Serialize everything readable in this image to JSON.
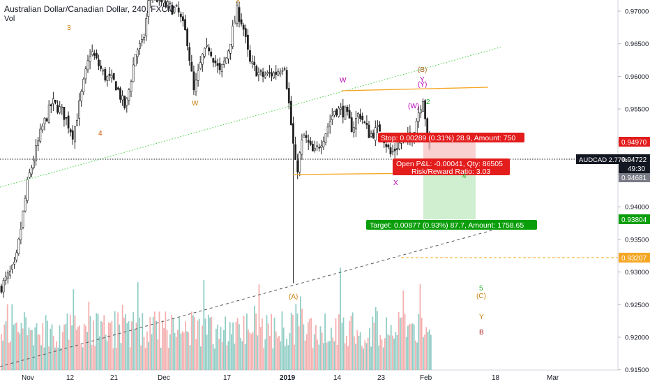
{
  "header": {
    "title": "Australian Dollar/Canadian Dollar, 240, FXCM",
    "volume_label": "Vol"
  },
  "price_axis": {
    "ticks": [
      "0.97000",
      "0.96500",
      "0.96000",
      "0.95500",
      "0.95000",
      "0.94500",
      "0.94000",
      "0.93500",
      "0.93000",
      "0.92500",
      "0.92000",
      "0.91500"
    ],
    "tick_values": [
      0.97,
      0.965,
      0.96,
      0.955,
      0.95,
      0.945,
      0.94,
      0.935,
      0.93,
      0.925,
      0.92,
      0.915
    ]
  },
  "time_axis": {
    "labels": [
      "Nov",
      "12",
      "21",
      "Dec",
      "17",
      "2019",
      "14",
      "23",
      "Feb",
      "18",
      "Mar"
    ]
  },
  "badges": {
    "stop_price": {
      "text": "0.94970",
      "value": 0.9497,
      "color": "#e31c1c"
    },
    "symbol": {
      "text": "AUDCAD  2.77%",
      "color": "#131722"
    },
    "current_price": {
      "text": "0.94722",
      "value": 0.94722,
      "color": "#131722"
    },
    "countdown": {
      "text": "49:30"
    },
    "entry_price": {
      "text": "0.94681",
      "value": 0.94681,
      "color": "#787b86"
    },
    "target_price": {
      "text": "0.93804",
      "value": 0.93804,
      "color": "#0b9e0b"
    },
    "orange_level": {
      "text": "0.93207",
      "value": 0.93207,
      "color": "#f5a623"
    }
  },
  "position": {
    "stop_label": "Stop: 0.00289 (0.31%) 28.9, Amount: 750",
    "pnl_label": "Open P&L: -0.00041, Qty: 86505",
    "rr_label": "Risk/Reward Ratio: 3.03",
    "target_label": "Target: 0.00877 (0.93%) 87.7, Amount: 1758.65"
  },
  "wave_labels": [
    {
      "text": "3",
      "color": "#c87f0a"
    },
    {
      "text": "4",
      "color": "#d35400"
    },
    {
      "text": "W",
      "color": "#c87f0a"
    },
    {
      "text": "X",
      "color": "#c87f0a"
    },
    {
      "text": "W",
      "color": "#b300b3"
    },
    {
      "text": "X",
      "color": "#b300b3"
    },
    {
      "text": "(B)",
      "color": "#a0641e"
    },
    {
      "text": "Y",
      "color": "#b300b3"
    },
    {
      "text": "(Y)",
      "color": "#b300b3"
    },
    {
      "text": "(W)",
      "color": "#b300b3"
    },
    {
      "text": "2",
      "color": "#27a727"
    },
    {
      "text": "4",
      "color": "#27a727"
    },
    {
      "text": "(A)",
      "color": "#c87f0a"
    },
    {
      "text": "5",
      "color": "#27a727"
    },
    {
      "text": "(C)",
      "color": "#c87f0a"
    },
    {
      "text": "Y",
      "color": "#c87f0a"
    },
    {
      "text": "B",
      "color": "#b22222"
    }
  ],
  "colors": {
    "up_volume": "#86c9c0",
    "down_volume": "#f4a7a7",
    "stop_zone": "#f7c6c6",
    "target_zone": "#c8ebc8",
    "trend_green": "#3ecf3e",
    "trend_dark": "#555555",
    "channel_orange": "#f5a623"
  }
}
